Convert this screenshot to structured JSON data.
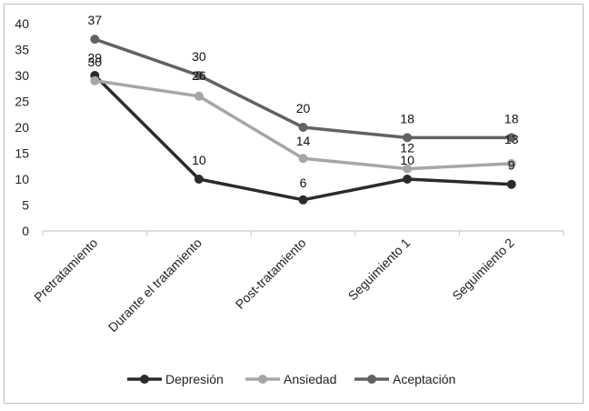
{
  "chart_data": {
    "type": "line",
    "title": "",
    "xlabel": "",
    "ylabel": "",
    "categories": [
      "Pretratamiento",
      "Durante el tratamiento",
      "Post-tratamiento",
      "Seguimiento 1",
      "Seguimiento 2"
    ],
    "ylim": [
      0,
      40
    ],
    "yticks": [
      0,
      5,
      10,
      15,
      20,
      25,
      30,
      35,
      40
    ],
    "grid": false,
    "legend_position": "bottom",
    "series": [
      {
        "name": "Depresión",
        "color": "#2b2b2b",
        "values": [
          30,
          10,
          6,
          10,
          9
        ],
        "labels": [
          "30",
          "10",
          "6",
          "10",
          "9"
        ]
      },
      {
        "name": "Ansiedad",
        "color": "#a6a6a6",
        "values": [
          29,
          26,
          14,
          12,
          13
        ],
        "labels": [
          "29",
          "26",
          "14",
          "12",
          "13"
        ]
      },
      {
        "name": "Aceptación",
        "color": "#626262",
        "values": [
          37,
          30,
          20,
          18,
          18
        ],
        "labels": [
          "37",
          "30",
          "20",
          "18",
          "18"
        ]
      }
    ]
  }
}
